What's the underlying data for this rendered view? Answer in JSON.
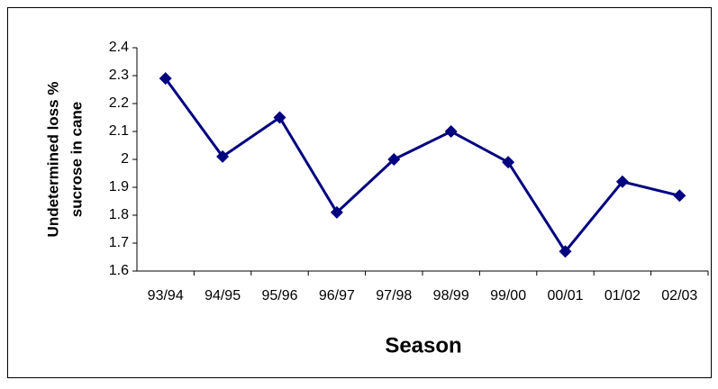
{
  "chart_data": {
    "type": "line",
    "xlabel": "Season",
    "ylabel": [
      "Undetermined loss %",
      "sucrose in cane"
    ],
    "categories": [
      "93/94",
      "94/95",
      "95/96",
      "96/97",
      "97/98",
      "98/99",
      "99/00",
      "00/01",
      "01/02",
      "02/03"
    ],
    "series": [
      {
        "name": "Undetermined loss",
        "color": "#000080",
        "values": [
          2.29,
          2.01,
          2.15,
          1.81,
          2.0,
          2.1,
          1.99,
          1.67,
          1.92,
          1.87
        ]
      }
    ],
    "ylim": [
      1.6,
      2.4
    ],
    "yticks": [
      1.6,
      1.7,
      1.8,
      1.9,
      2,
      2.1,
      2.2,
      2.3,
      2.4
    ],
    "grid": false,
    "legend": false
  }
}
